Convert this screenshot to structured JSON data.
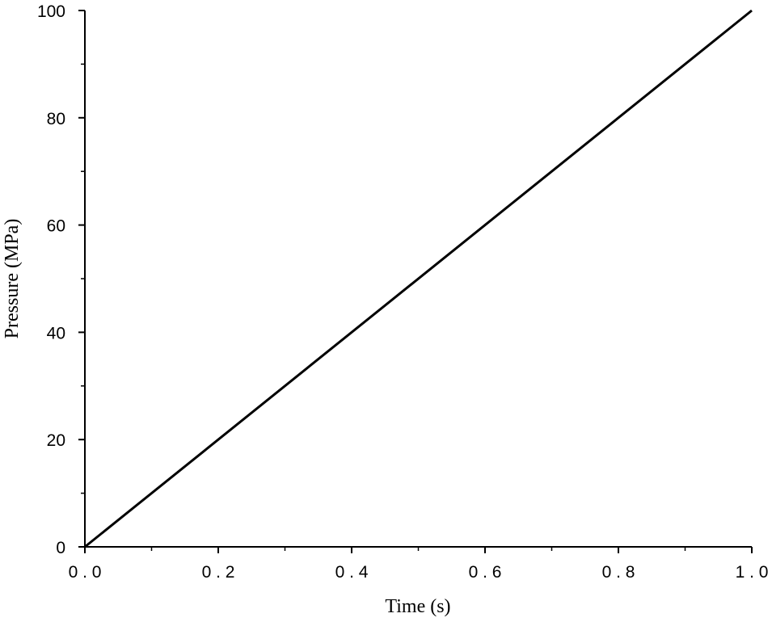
{
  "chart_data": {
    "type": "line",
    "xlabel": "Time (s)",
    "ylabel": "Pressure (MPa)",
    "xlim": [
      0,
      1
    ],
    "ylim": [
      0,
      100
    ],
    "x_ticks": [
      0,
      0.2,
      0.4,
      0.6,
      0.8,
      1.0
    ],
    "x_tick_labels": [
      "0.0",
      "0.2",
      "0.4",
      "0.6",
      "0.8",
      "1.0"
    ],
    "y_ticks": [
      0,
      20,
      40,
      60,
      80,
      100
    ],
    "y_tick_labels": [
      "0",
      "20",
      "40",
      "60",
      "80",
      "100"
    ],
    "grid": false,
    "series": [
      {
        "x": [
          0,
          1.0
        ],
        "y": [
          0,
          100
        ]
      }
    ],
    "line_color": "#000000"
  }
}
